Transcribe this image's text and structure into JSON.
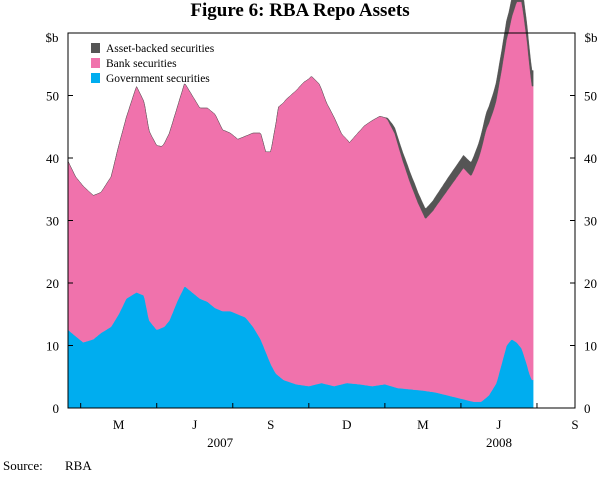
{
  "chart_data": {
    "type": "area",
    "stacked": true,
    "title": "Figure 6: RBA Repo Assets",
    "y_unit_label": "$b",
    "ylim": [
      0,
      60
    ],
    "y_ticks": [
      0,
      10,
      20,
      30,
      40,
      50
    ],
    "x_range": [
      0,
      20
    ],
    "x_month_ticks": [
      {
        "label": "M",
        "x": 2.0
      },
      {
        "label": "J",
        "x": 5.0
      },
      {
        "label": "S",
        "x": 8.0
      },
      {
        "label": "D",
        "x": 11.0
      },
      {
        "label": "M",
        "x": 14.0
      },
      {
        "label": "J",
        "x": 17.0
      },
      {
        "label": "S",
        "x": 20.0
      }
    ],
    "x_tick_marks": [
      0.5,
      3.5,
      6.5,
      9.5,
      12.5,
      15.5,
      18.5
    ],
    "x_year_labels": [
      {
        "label": "2007",
        "x": 6.0
      },
      {
        "label": "2008",
        "x": 17.0
      }
    ],
    "legend_position": "top-left",
    "series": [
      {
        "name": "Government securities",
        "color": "#00adef",
        "points": [
          [
            0,
            12.5
          ],
          [
            0.3,
            11.5
          ],
          [
            0.6,
            10.5
          ],
          [
            1,
            11
          ],
          [
            1.3,
            12
          ],
          [
            1.7,
            13
          ],
          [
            2,
            15
          ],
          [
            2.3,
            17.5
          ],
          [
            2.7,
            18.5
          ],
          [
            3,
            18
          ],
          [
            3.2,
            14
          ],
          [
            3.5,
            12.5
          ],
          [
            3.8,
            13
          ],
          [
            4,
            14
          ],
          [
            4.3,
            17
          ],
          [
            4.6,
            19.5
          ],
          [
            4.9,
            18.5
          ],
          [
            5.2,
            17.5
          ],
          [
            5.5,
            17
          ],
          [
            5.8,
            16
          ],
          [
            6.1,
            15.5
          ],
          [
            6.4,
            15.5
          ],
          [
            6.7,
            15
          ],
          [
            7,
            14.5
          ],
          [
            7.3,
            13
          ],
          [
            7.6,
            11
          ],
          [
            7.8,
            9
          ],
          [
            8.0,
            7
          ],
          [
            8.2,
            5.5
          ],
          [
            8.5,
            4.5
          ],
          [
            9,
            3.8
          ],
          [
            9.5,
            3.5
          ],
          [
            10,
            4
          ],
          [
            10.5,
            3.5
          ],
          [
            11,
            4
          ],
          [
            11.5,
            3.8
          ],
          [
            12,
            3.5
          ],
          [
            12.5,
            3.8
          ],
          [
            13,
            3.2
          ],
          [
            13.5,
            3
          ],
          [
            14,
            2.8
          ],
          [
            14.5,
            2.5
          ],
          [
            15,
            2
          ],
          [
            15.5,
            1.5
          ],
          [
            16,
            1
          ],
          [
            16.3,
            1
          ],
          [
            16.6,
            2
          ],
          [
            16.9,
            4
          ],
          [
            17.1,
            7
          ],
          [
            17.3,
            10
          ],
          [
            17.5,
            11
          ],
          [
            17.7,
            10.5
          ],
          [
            17.9,
            9.5
          ],
          [
            18.1,
            7
          ],
          [
            18.2,
            5.5
          ],
          [
            18.3,
            4.5
          ],
          [
            18.35,
            4.5
          ]
        ]
      },
      {
        "name": "Bank securities",
        "color": "#f072ac",
        "points": [
          [
            0,
            27
          ],
          [
            0.3,
            25.5
          ],
          [
            0.6,
            25
          ],
          [
            1,
            23
          ],
          [
            1.3,
            22.5
          ],
          [
            1.7,
            24
          ],
          [
            2,
            27
          ],
          [
            2.3,
            29
          ],
          [
            2.7,
            33
          ],
          [
            3,
            31
          ],
          [
            3.3,
            30
          ],
          [
            3.7,
            29
          ],
          [
            4,
            30
          ],
          [
            4.3,
            31
          ],
          [
            4.6,
            32.5
          ],
          [
            4.9,
            31.5
          ],
          [
            5.2,
            30.5
          ],
          [
            5.5,
            31
          ],
          [
            5.8,
            31
          ],
          [
            6.1,
            29
          ],
          [
            6.4,
            28.5
          ],
          [
            6.7,
            28
          ],
          [
            7,
            29
          ],
          [
            7.3,
            31
          ],
          [
            7.6,
            33
          ],
          [
            7.8,
            32
          ],
          [
            8.0,
            34
          ],
          [
            8.3,
            43
          ],
          [
            8.6,
            45
          ],
          [
            9,
            47
          ],
          [
            9.3,
            48.5
          ],
          [
            9.6,
            49.5
          ],
          [
            9.9,
            48
          ],
          [
            10.2,
            45
          ],
          [
            10.5,
            43
          ],
          [
            10.8,
            40
          ],
          [
            11.1,
            38.5
          ],
          [
            11.4,
            40
          ],
          [
            11.7,
            41.5
          ],
          [
            12,
            42.5
          ],
          [
            12.3,
            43
          ],
          [
            12.6,
            42.5
          ],
          [
            12.9,
            40.5
          ],
          [
            13.2,
            36.5
          ],
          [
            13.5,
            33
          ],
          [
            13.8,
            30
          ],
          [
            14.1,
            27.5
          ],
          [
            14.4,
            29
          ],
          [
            14.7,
            31
          ],
          [
            15,
            33
          ],
          [
            15.3,
            35
          ],
          [
            15.6,
            37
          ],
          [
            15.9,
            36
          ],
          [
            16.2,
            39
          ],
          [
            16.5,
            43
          ],
          [
            16.8,
            44.5
          ],
          [
            17.1,
            47
          ],
          [
            17.4,
            50
          ],
          [
            17.7,
            54.5
          ],
          [
            17.9,
            55.5
          ],
          [
            18.1,
            52
          ],
          [
            18.3,
            47
          ],
          [
            18.35,
            47
          ]
        ]
      },
      {
        "name": "Asset-backed securities",
        "color": "#555555",
        "points": [
          [
            0,
            0
          ],
          [
            12.5,
            0
          ],
          [
            12.8,
            0.8
          ],
          [
            13.1,
            1.2
          ],
          [
            13.4,
            1.6
          ],
          [
            13.7,
            1.7
          ],
          [
            14,
            1.6
          ],
          [
            14.3,
            1.6
          ],
          [
            14.6,
            1.7
          ],
          [
            15,
            1.9
          ],
          [
            15.5,
            2
          ],
          [
            16,
            2.2
          ],
          [
            16.5,
            2.6
          ],
          [
            17,
            3
          ],
          [
            17.5,
            3
          ],
          [
            17.9,
            2.8
          ],
          [
            18.2,
            2.5
          ],
          [
            18.35,
            2.5
          ]
        ]
      }
    ]
  },
  "source": {
    "prefix": "Source:",
    "value": "RBA"
  }
}
